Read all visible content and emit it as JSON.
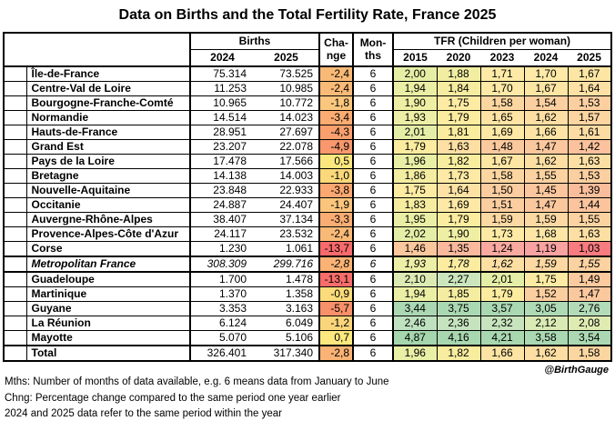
{
  "title": "Data on Births and the Total Fertility Rate, France 2025",
  "attribution": "@BirthGauge",
  "footnotes": [
    "Mths: Number of months of data available, e.g. 6 means data from January to June",
    "Chng: Percentage change compared to the same period one year earlier",
    "2024 and 2025 data refer to the same period within the year"
  ],
  "chart_data": {
    "type": "table",
    "title": "Data on Births and the Total Fertility Rate, France 2025",
    "headers": {
      "births_group": "Births",
      "change_lines": [
        "Cha-",
        "nge"
      ],
      "months_lines": [
        "Mon-",
        "ths"
      ],
      "tfr_group": "TFR (Children per woman)",
      "births_years": [
        "2024",
        "2025"
      ],
      "tfr_years": [
        "2015",
        "2020",
        "2023",
        "2024",
        "2025"
      ]
    },
    "rows": [
      {
        "region": "Île-de-France",
        "births_2024": "75.314",
        "births_2025": "73.525",
        "change_pct": "-2,4",
        "months": "6",
        "tfr": [
          "2,00",
          "1,88",
          "1,71",
          "1,70",
          "1,67"
        ],
        "style": "region"
      },
      {
        "region": "Centre-Val de Loire",
        "births_2024": "11.253",
        "births_2025": "10.985",
        "change_pct": "-2,4",
        "months": "6",
        "tfr": [
          "1,94",
          "1,84",
          "1,70",
          "1,67",
          "1,64"
        ],
        "style": "region"
      },
      {
        "region": "Bourgogne-Franche-Comté",
        "births_2024": "10.965",
        "births_2025": "10.772",
        "change_pct": "-1,8",
        "months": "6",
        "tfr": [
          "1,90",
          "1,75",
          "1,58",
          "1,54",
          "1,53"
        ],
        "style": "region"
      },
      {
        "region": "Normandie",
        "births_2024": "14.514",
        "births_2025": "14.023",
        "change_pct": "-3,4",
        "months": "6",
        "tfr": [
          "1,93",
          "1,79",
          "1,65",
          "1,62",
          "1,57"
        ],
        "style": "region"
      },
      {
        "region": "Hauts-de-France",
        "births_2024": "28.951",
        "births_2025": "27.697",
        "change_pct": "-4,3",
        "months": "6",
        "tfr": [
          "2,01",
          "1,81",
          "1,69",
          "1,66",
          "1,61"
        ],
        "style": "region"
      },
      {
        "region": "Grand Est",
        "births_2024": "23.207",
        "births_2025": "22.078",
        "change_pct": "-4,9",
        "months": "6",
        "tfr": [
          "1,79",
          "1,63",
          "1,48",
          "1,47",
          "1,42"
        ],
        "style": "region"
      },
      {
        "region": "Pays de la Loire",
        "births_2024": "17.478",
        "births_2025": "17.566",
        "change_pct": "0,5",
        "months": "6",
        "tfr": [
          "1,96",
          "1,82",
          "1,67",
          "1,62",
          "1,63"
        ],
        "style": "region"
      },
      {
        "region": "Bretagne",
        "births_2024": "14.138",
        "births_2025": "14.003",
        "change_pct": "-1,0",
        "months": "6",
        "tfr": [
          "1,86",
          "1,73",
          "1,58",
          "1,55",
          "1,53"
        ],
        "style": "region"
      },
      {
        "region": "Nouvelle-Aquitaine",
        "births_2024": "23.848",
        "births_2025": "22.933",
        "change_pct": "-3,8",
        "months": "6",
        "tfr": [
          "1,75",
          "1,64",
          "1,50",
          "1,45",
          "1,39"
        ],
        "style": "region"
      },
      {
        "region": "Occitanie",
        "births_2024": "24.887",
        "births_2025": "24.407",
        "change_pct": "-1,9",
        "months": "6",
        "tfr": [
          "1,83",
          "1,69",
          "1,51",
          "1,47",
          "1,44"
        ],
        "style": "region"
      },
      {
        "region": "Auvergne-Rhône-Alpes",
        "births_2024": "38.407",
        "births_2025": "37.134",
        "change_pct": "-3,3",
        "months": "6",
        "tfr": [
          "1,95",
          "1,79",
          "1,59",
          "1,59",
          "1,55"
        ],
        "style": "region"
      },
      {
        "region": "Provence-Alpes-Côte d'Azur",
        "births_2024": "24.117",
        "births_2025": "23.532",
        "change_pct": "-2,4",
        "months": "6",
        "tfr": [
          "2,02",
          "1,90",
          "1,73",
          "1,68",
          "1,63"
        ],
        "style": "region"
      },
      {
        "region": "Corse",
        "births_2024": "1.230",
        "births_2025": "1.061",
        "change_pct": "-13,7",
        "months": "6",
        "tfr": [
          "1,46",
          "1,35",
          "1,24",
          "1,19",
          "1,03"
        ],
        "style": "region"
      },
      {
        "region": "Metropolitan France",
        "births_2024": "308.309",
        "births_2025": "299.716",
        "change_pct": "-2,8",
        "months": "6",
        "tfr": [
          "1,93",
          "1,78",
          "1,62",
          "1,59",
          "1,55"
        ],
        "style": "subtotal"
      },
      {
        "region": "Guadeloupe",
        "births_2024": "1.700",
        "births_2025": "1.478",
        "change_pct": "-13,1",
        "months": "6",
        "tfr": [
          "2,10",
          "2,27",
          "2,01",
          "1,75",
          "1,49"
        ],
        "style": "region"
      },
      {
        "region": "Martinique",
        "births_2024": "1.370",
        "births_2025": "1.358",
        "change_pct": "-0,9",
        "months": "6",
        "tfr": [
          "1,94",
          "1,85",
          "1,79",
          "1,52",
          "1,47"
        ],
        "style": "region"
      },
      {
        "region": "Guyane",
        "births_2024": "3.353",
        "births_2025": "3.163",
        "change_pct": "-5,7",
        "months": "6",
        "tfr": [
          "3,44",
          "3,75",
          "3,57",
          "3,05",
          "2,76"
        ],
        "style": "region"
      },
      {
        "region": "La Réunion",
        "births_2024": "6.124",
        "births_2025": "6.049",
        "change_pct": "-1,2",
        "months": "6",
        "tfr": [
          "2,46",
          "2,36",
          "2,32",
          "2,12",
          "2,08"
        ],
        "style": "region"
      },
      {
        "region": "Mayotte",
        "births_2024": "5.070",
        "births_2025": "5.106",
        "change_pct": "0,7",
        "months": "6",
        "tfr": [
          "4,87",
          "4,16",
          "4,21",
          "3,58",
          "3,54"
        ],
        "style": "region"
      },
      {
        "region": "Total",
        "births_2024": "326.401",
        "births_2025": "317.340",
        "change_pct": "-2,8",
        "months": "6",
        "tfr": [
          "1,96",
          "1,82",
          "1,66",
          "1,62",
          "1,58"
        ],
        "style": "total"
      }
    ],
    "heatmap_colors": {
      "change_stops": [
        [
          -14.0,
          "#F8696B"
        ],
        [
          -5.7,
          "#F8906A"
        ],
        [
          -4.9,
          "#F8986C"
        ],
        [
          -4.3,
          "#F9A06E"
        ],
        [
          -3.4,
          "#FAAC72"
        ],
        [
          -2.8,
          "#FAB375"
        ],
        [
          -2.4,
          "#FABA77"
        ],
        [
          -1.8,
          "#FBC77E"
        ],
        [
          -1.0,
          "#FBD97A"
        ],
        [
          -0.4,
          "#FBE27C"
        ],
        [
          0.7,
          "#FCE87E"
        ]
      ],
      "tfr_stops": [
        [
          1.03,
          "#F87B7F"
        ],
        [
          1.19,
          "#F9A2A2"
        ],
        [
          1.24,
          "#F9A9A0"
        ],
        [
          1.35,
          "#FAB89C"
        ],
        [
          1.46,
          "#FBC79D"
        ],
        [
          1.54,
          "#FBD0A0"
        ],
        [
          1.58,
          "#FCD6A1"
        ],
        [
          1.62,
          "#FDDEA3"
        ],
        [
          1.66,
          "#FDE4A4"
        ],
        [
          1.71,
          "#FEEAA6"
        ],
        [
          1.76,
          "#FDEBA2"
        ],
        [
          1.8,
          "#FAEC9E"
        ],
        [
          1.85,
          "#F4ECA0"
        ],
        [
          1.9,
          "#EFEFA4"
        ],
        [
          1.96,
          "#E9EFA5"
        ],
        [
          2.02,
          "#E4EEA6"
        ],
        [
          2.1,
          "#DCEBB4"
        ],
        [
          2.27,
          "#CBE5BD"
        ],
        [
          2.46,
          "#BFE1C0"
        ],
        [
          2.76,
          "#B2DBB8"
        ],
        [
          3.05,
          "#AFDAB6"
        ],
        [
          3.44,
          "#ABD8B3"
        ],
        [
          4.87,
          "#A5D6AE"
        ]
      ]
    }
  }
}
